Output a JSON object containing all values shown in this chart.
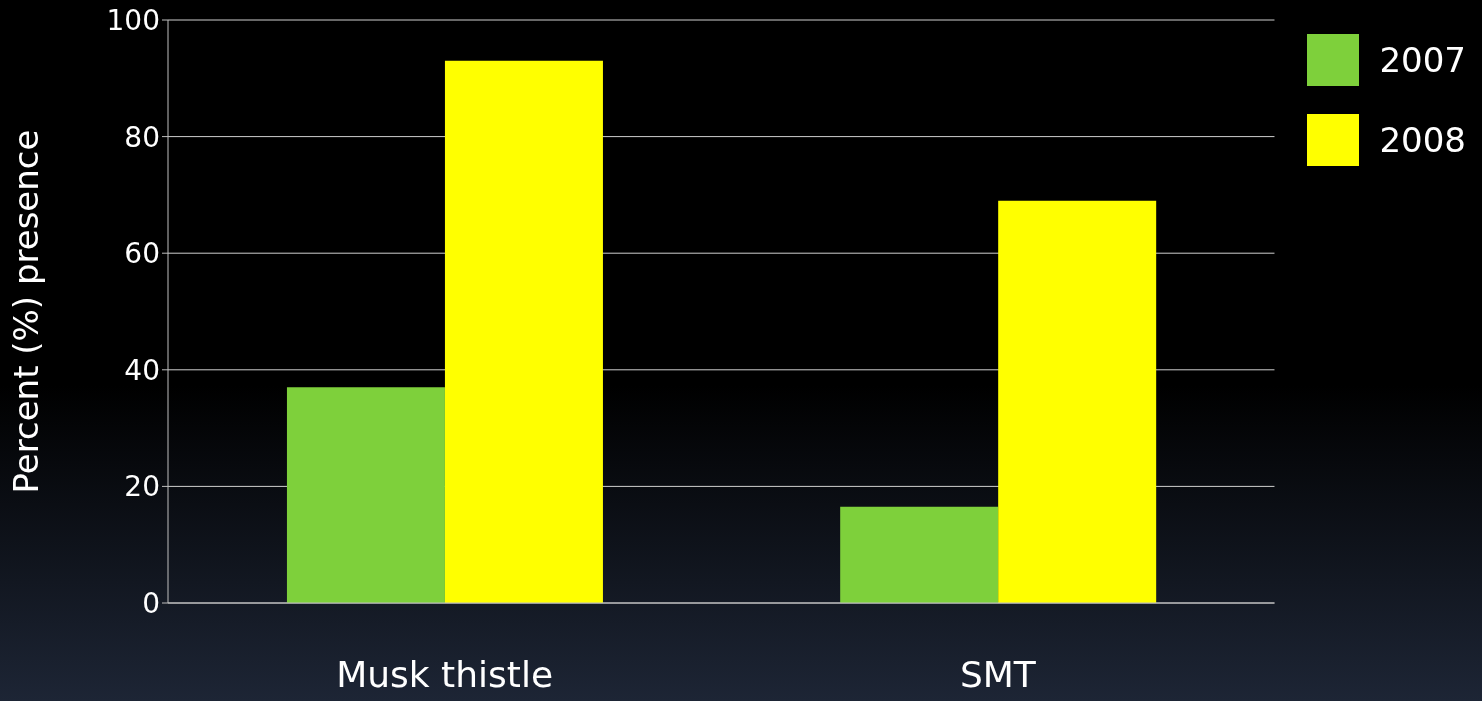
{
  "chart_data": {
    "type": "bar",
    "ylabel": "Percent (%) presence",
    "categories": [
      "Musk thistle",
      "SMT"
    ],
    "series": [
      {
        "name": "2007",
        "color": "#7ed03b",
        "values": [
          37,
          16.5
        ]
      },
      {
        "name": "2008",
        "color": "#ffff00",
        "values": [
          93,
          69
        ]
      }
    ],
    "ylim": [
      0,
      100
    ],
    "yticks": [
      0,
      20,
      40,
      60,
      80,
      100
    ],
    "grid": "y",
    "legend": "top right"
  }
}
